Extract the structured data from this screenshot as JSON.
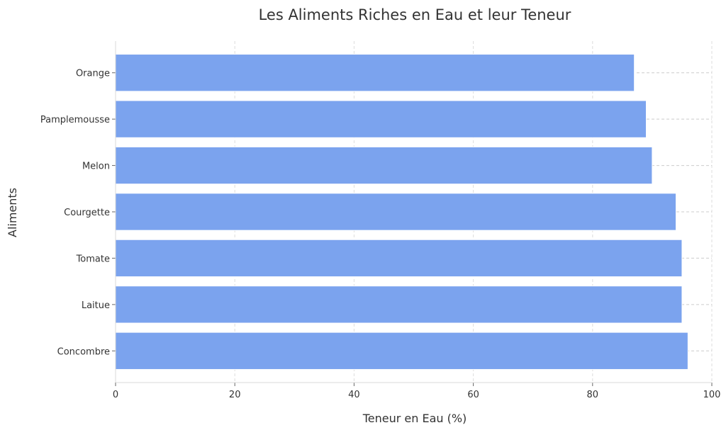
{
  "chart_data": {
    "type": "bar",
    "orientation": "horizontal",
    "title": "Les Aliments Riches en Eau et leur Teneur",
    "xlabel": "Teneur en Eau (%)",
    "ylabel": "Aliments",
    "categories": [
      "Concombre",
      "Laitue",
      "Tomate",
      "Courgette",
      "Melon",
      "Pamplemousse",
      "Orange"
    ],
    "values": [
      96,
      95,
      95,
      94,
      90,
      89,
      87
    ],
    "xlim": [
      0,
      100
    ],
    "xticks": [
      "0",
      "20",
      "40",
      "60",
      "80",
      "100"
    ],
    "grid": true,
    "bar_color": "#7ba3ee"
  }
}
